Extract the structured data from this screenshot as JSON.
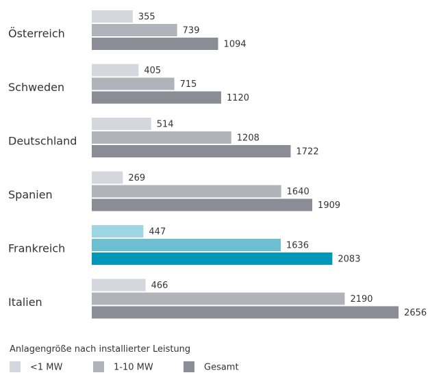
{
  "chart_data": {
    "type": "hbar",
    "categories": [
      "Österreich",
      "Schweden",
      "Deutschland",
      "Spanien",
      "Frankreich",
      "Italien"
    ],
    "series": [
      {
        "name": "<1 MW",
        "color": "#d5d7de",
        "colors": [
          "#d5d7de",
          "#d5d7de",
          "#d5d7de",
          "#d5d7de",
          "#9dd6e2",
          "#d5d7de"
        ],
        "values": [
          355,
          405,
          514,
          269,
          447,
          466
        ]
      },
      {
        "name": "1-10 MW",
        "color": "#b1b3ba",
        "colors": [
          "#b1b3ba",
          "#b1b3ba",
          "#b1b3ba",
          "#b1b3ba",
          "#6bbfd1",
          "#b1b3ba"
        ],
        "values": [
          739,
          715,
          1208,
          1640,
          1636,
          2190
        ]
      },
      {
        "name": "Gesamt",
        "color": "#8a8c96",
        "colors": [
          "#8a8c96",
          "#8a8c96",
          "#8a8c96",
          "#8a8c96",
          "#0097b8",
          "#8a8c96"
        ],
        "values": [
          1094,
          1120,
          1722,
          1909,
          2083,
          2656
        ]
      }
    ],
    "legend_title": "Anlagengröße nach installierter Leistung"
  }
}
